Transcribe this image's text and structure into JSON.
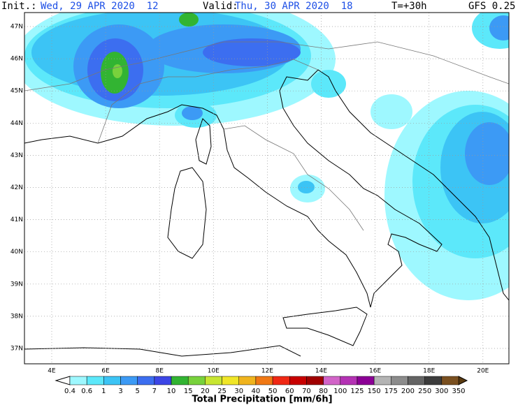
{
  "header": {
    "init_label": "Init.:",
    "init_value": "Wed, 29 APR 2020  12",
    "valid_label": "Valid:",
    "valid_value": "Thu, 30 APR 2020  18",
    "lead": "T=+30h",
    "model": "GFS 0.25"
  },
  "lat_labels": [
    "47N",
    "46N",
    "45N",
    "44N",
    "43N",
    "42N",
    "41N",
    "40N",
    "39N",
    "38N",
    "37N"
  ],
  "lon_labels": [
    "4E",
    "6E",
    "8E",
    "10E",
    "12E",
    "14E",
    "16E",
    "18E",
    "20E"
  ],
  "colorbar": {
    "title": "Total Precipitation [mm/6h]",
    "thresholds": [
      0.4,
      0.6,
      1,
      3,
      5,
      7,
      10,
      15,
      20,
      25,
      30,
      40,
      50,
      60,
      70,
      80,
      100,
      125,
      150,
      175,
      200,
      250,
      300,
      350
    ],
    "under_color": "#ffffff",
    "over_color": "#5a3a10",
    "colors": [
      "#9ef8ff",
      "#5ce8fa",
      "#3cc4f5",
      "#3c9af5",
      "#3c6ef0",
      "#3c46e6",
      "#32b432",
      "#78d23c",
      "#c8e632",
      "#f0e628",
      "#f0b41e",
      "#f07814",
      "#f02814",
      "#c80000",
      "#a00000",
      "#d264c8",
      "#b432b4",
      "#8c0096",
      "#b4b4b4",
      "#8c8c8c",
      "#646464",
      "#3c3c3c",
      "#7a5020"
    ]
  }
}
